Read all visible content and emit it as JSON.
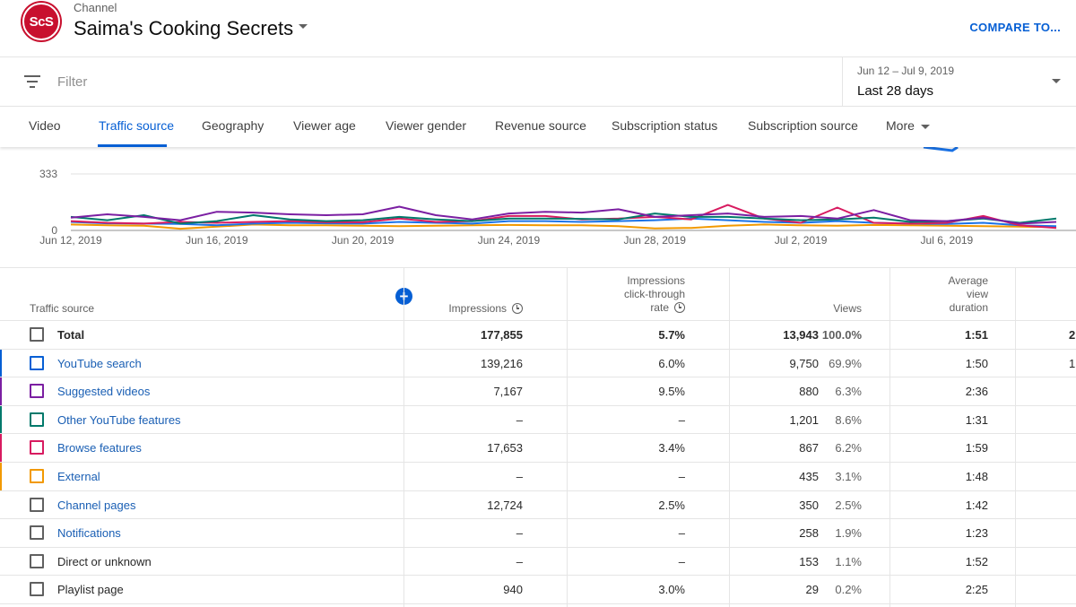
{
  "header": {
    "logo_text": "ScS",
    "channel_label": "Channel",
    "channel_name": "Saima's Cooking Secrets",
    "compare_label": "COMPARE TO..."
  },
  "filter": {
    "placeholder": "Filter"
  },
  "date": {
    "range": "Jun 12 – Jul 9, 2019",
    "period": "Last 28 days"
  },
  "tabs": [
    "Video",
    "Traffic source",
    "Geography",
    "Viewer age",
    "Viewer gender",
    "Revenue source",
    "Subscription status",
    "Subscription source",
    "More"
  ],
  "active_tab": "Traffic source",
  "chart_data": {
    "type": "line",
    "yticks": [
      "333",
      "0"
    ],
    "ylim": [
      0,
      333
    ],
    "xticks": [
      "Jun 12, 2019",
      "Jun 16, 2019",
      "Jun 20, 2019",
      "Jun 24, 2019",
      "Jun 28, 2019",
      "Jul 2, 2019",
      "Jul 6, 2019"
    ],
    "x": [
      "2019-06-12",
      "2019-06-13",
      "2019-06-14",
      "2019-06-15",
      "2019-06-16",
      "2019-06-17",
      "2019-06-18",
      "2019-06-19",
      "2019-06-20",
      "2019-06-21",
      "2019-06-22",
      "2019-06-23",
      "2019-06-24",
      "2019-06-25",
      "2019-06-26",
      "2019-06-27",
      "2019-06-28",
      "2019-06-29",
      "2019-06-30",
      "2019-07-01",
      "2019-07-02",
      "2019-07-03",
      "2019-07-04",
      "2019-07-05",
      "2019-07-06",
      "2019-07-07",
      "2019-07-08",
      "2019-07-09"
    ],
    "series": [
      {
        "color": "#7b1fa2",
        "values": [
          75,
          95,
          80,
          60,
          110,
          105,
          95,
          90,
          95,
          140,
          90,
          65,
          100,
          110,
          105,
          125,
          80,
          90,
          100,
          80,
          85,
          70,
          120,
          60,
          55,
          75,
          40,
          50
        ]
      },
      {
        "color": "#00796b",
        "values": [
          80,
          60,
          90,
          40,
          55,
          90,
          65,
          55,
          60,
          80,
          65,
          55,
          70,
          70,
          68,
          65,
          100,
          80,
          80,
          70,
          60,
          65,
          75,
          50,
          55,
          70,
          45,
          70
        ]
      },
      {
        "color": "#d81b60",
        "values": [
          55,
          45,
          40,
          50,
          45,
          50,
          55,
          48,
          48,
          70,
          50,
          55,
          85,
          85,
          65,
          70,
          80,
          65,
          150,
          70,
          45,
          135,
          45,
          40,
          45,
          85,
          30,
          15
        ]
      },
      {
        "color": "#1a73e8",
        "values": [
          50,
          42,
          40,
          38,
          30,
          40,
          45,
          42,
          40,
          50,
          45,
          40,
          55,
          55,
          50,
          55,
          60,
          70,
          60,
          50,
          45,
          55,
          45,
          40,
          38,
          45,
          30,
          25
        ]
      },
      {
        "color": "#f29900",
        "values": [
          35,
          30,
          28,
          10,
          22,
          35,
          30,
          30,
          28,
          25,
          28,
          30,
          32,
          30,
          30,
          25,
          12,
          15,
          28,
          35,
          30,
          28,
          32,
          30,
          28,
          25,
          22,
          20
        ]
      }
    ]
  },
  "table": {
    "headers": {
      "source": "Traffic source",
      "impressions": "Impressions",
      "ctr_1": "Impressions",
      "ctr_2": "click-through",
      "ctr_3": "rate",
      "views": "Views",
      "avd_1": "Average",
      "avd_2": "view",
      "avd_3": "duration"
    },
    "rows": [
      {
        "name": "Total",
        "impressions": "177,855",
        "ctr": "5.7%",
        "views": "13,943",
        "pct": "100.0%",
        "avd": "1:51",
        "extra": "2",
        "color": "#606060",
        "link": false,
        "bold": true
      },
      {
        "name": "YouTube search",
        "impressions": "139,216",
        "ctr": "6.0%",
        "views": "9,750",
        "pct": "69.9%",
        "avd": "1:50",
        "extra": "1",
        "color": "#065fd4",
        "link": true,
        "bold": false
      },
      {
        "name": "Suggested videos",
        "impressions": "7,167",
        "ctr": "9.5%",
        "views": "880",
        "pct": "6.3%",
        "avd": "2:36",
        "extra": "",
        "color": "#7b1fa2",
        "link": true,
        "bold": false
      },
      {
        "name": "Other YouTube features",
        "impressions": "–",
        "ctr": "–",
        "views": "1,201",
        "pct": "8.6%",
        "avd": "1:31",
        "extra": "",
        "color": "#00796b",
        "link": true,
        "bold": false
      },
      {
        "name": "Browse features",
        "impressions": "17,653",
        "ctr": "3.4%",
        "views": "867",
        "pct": "6.2%",
        "avd": "1:59",
        "extra": "",
        "color": "#d81b60",
        "link": true,
        "bold": false
      },
      {
        "name": "External",
        "impressions": "–",
        "ctr": "–",
        "views": "435",
        "pct": "3.1%",
        "avd": "1:48",
        "extra": "",
        "color": "#f29900",
        "link": true,
        "bold": false
      },
      {
        "name": "Channel pages",
        "impressions": "12,724",
        "ctr": "2.5%",
        "views": "350",
        "pct": "2.5%",
        "avd": "1:42",
        "extra": "",
        "color": "#606060",
        "link": true,
        "bold": false
      },
      {
        "name": "Notifications",
        "impressions": "–",
        "ctr": "–",
        "views": "258",
        "pct": "1.9%",
        "avd": "1:23",
        "extra": "",
        "color": "#606060",
        "link": true,
        "bold": false
      },
      {
        "name": "Direct or unknown",
        "impressions": "–",
        "ctr": "–",
        "views": "153",
        "pct": "1.1%",
        "avd": "1:52",
        "extra": "",
        "color": "#606060",
        "link": false,
        "bold": false
      },
      {
        "name": "Playlist page",
        "impressions": "940",
        "ctr": "3.0%",
        "views": "29",
        "pct": "0.2%",
        "avd": "2:25",
        "extra": "",
        "color": "#606060",
        "link": false,
        "bold": false
      }
    ]
  },
  "colors": {
    "accent": "#065fd4",
    "link": "#1a5fb4"
  }
}
